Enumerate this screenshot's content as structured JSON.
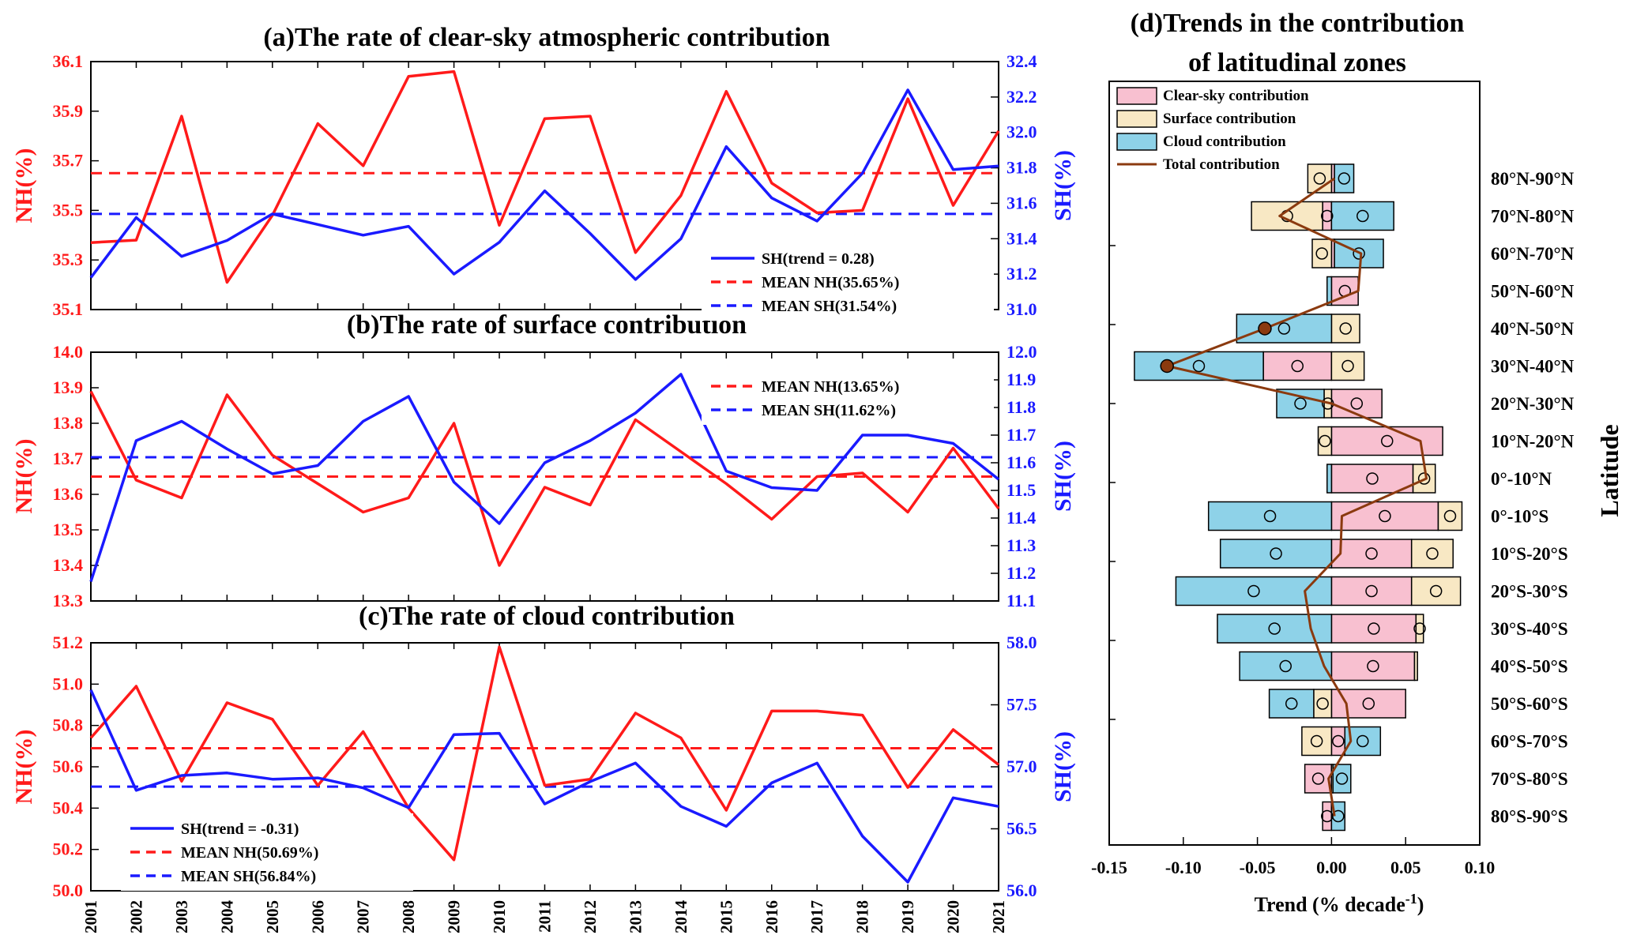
{
  "chart_data": [
    {
      "id": "a",
      "type": "line",
      "title": "(a)The rate of clear-sky atmospheric contribution",
      "x": [
        2001,
        2002,
        2003,
        2004,
        2005,
        2006,
        2007,
        2008,
        2009,
        2010,
        2011,
        2012,
        2013,
        2014,
        2015,
        2016,
        2017,
        2018,
        2019,
        2020,
        2021
      ],
      "ylabel_left": "NH(%)",
      "ylabel_right": "SH(%)",
      "ylim_left": [
        35.1,
        36.1
      ],
      "ylim_right": [
        31.0,
        32.4
      ],
      "yticks_left": [
        "35.1",
        "35.3",
        "35.5",
        "35.7",
        "35.9",
        "36.1"
      ],
      "yticks_right": [
        "31.0",
        "31.2",
        "31.4",
        "31.6",
        "31.8",
        "32.0",
        "32.2",
        "32.4"
      ],
      "series": [
        {
          "name": "NH",
          "axis": "left",
          "color": "#ff1a1a",
          "values": [
            35.37,
            35.38,
            35.88,
            35.21,
            35.48,
            35.85,
            35.68,
            36.04,
            36.06,
            35.44,
            35.87,
            35.88,
            35.33,
            35.56,
            35.98,
            35.61,
            35.49,
            35.5,
            35.95,
            35.52,
            35.82
          ]
        },
        {
          "name": "SH(trend = 0.28)",
          "axis": "right",
          "color": "#1a1aff",
          "values": [
            31.18,
            31.52,
            31.3,
            31.39,
            31.54,
            31.48,
            31.42,
            31.47,
            31.2,
            31.38,
            31.67,
            31.43,
            31.17,
            31.4,
            31.92,
            31.63,
            31.5,
            31.77,
            32.24,
            31.79,
            31.81
          ]
        }
      ],
      "means": [
        {
          "name": "MEAN NH(35.65%)",
          "axis": "left",
          "value": 35.65,
          "color": "#ff1a1a"
        },
        {
          "name": "MEAN SH(31.54%)",
          "axis": "right",
          "value": 31.54,
          "color": "#1a1aff"
        }
      ],
      "legend": [
        "SH(trend = 0.28)",
        "MEAN NH(35.65%)",
        "MEAN SH(31.54%)"
      ],
      "legend_position": "bottom-right"
    },
    {
      "id": "b",
      "type": "line",
      "title": "(b)The rate of surface contribution",
      "x": [
        2001,
        2002,
        2003,
        2004,
        2005,
        2006,
        2007,
        2008,
        2009,
        2010,
        2011,
        2012,
        2013,
        2014,
        2015,
        2016,
        2017,
        2018,
        2019,
        2020,
        2021
      ],
      "ylabel_left": "NH(%)",
      "ylabel_right": "SH(%)",
      "ylim_left": [
        13.3,
        14.0
      ],
      "ylim_right": [
        11.1,
        12.0
      ],
      "yticks_left": [
        "13.3",
        "13.4",
        "13.5",
        "13.6",
        "13.7",
        "13.8",
        "13.9",
        "14.0"
      ],
      "yticks_right": [
        "11.1",
        "11.2",
        "11.3",
        "11.4",
        "11.5",
        "11.6",
        "11.7",
        "11.8",
        "11.9",
        "12.0"
      ],
      "series": [
        {
          "name": "NH",
          "axis": "left",
          "color": "#ff1a1a",
          "values": [
            13.89,
            13.64,
            13.59,
            13.88,
            13.71,
            13.63,
            13.55,
            13.59,
            13.8,
            13.4,
            13.62,
            13.57,
            13.81,
            13.72,
            13.63,
            13.53,
            13.65,
            13.66,
            13.55,
            13.73,
            13.56
          ]
        },
        {
          "name": "SH",
          "axis": "right",
          "color": "#1a1aff",
          "values": [
            11.17,
            11.68,
            11.75,
            11.65,
            11.56,
            11.59,
            11.75,
            11.84,
            11.53,
            11.38,
            11.6,
            11.68,
            11.78,
            11.92,
            11.57,
            11.51,
            11.5,
            11.7,
            11.7,
            11.67,
            11.54
          ]
        }
      ],
      "means": [
        {
          "name": "MEAN NH(13.65%)",
          "axis": "left",
          "value": 13.65,
          "color": "#ff1a1a"
        },
        {
          "name": "MEAN SH(11.62%)",
          "axis": "right",
          "value": 11.62,
          "color": "#1a1aff"
        }
      ],
      "legend": [
        "MEAN NH(13.65%)",
        "MEAN SH(11.62%)"
      ],
      "legend_position": "top-right"
    },
    {
      "id": "c",
      "type": "line",
      "title": "(c)The rate of cloud contribution",
      "x": [
        2001,
        2002,
        2003,
        2004,
        2005,
        2006,
        2007,
        2008,
        2009,
        2010,
        2011,
        2012,
        2013,
        2014,
        2015,
        2016,
        2017,
        2018,
        2019,
        2020,
        2021
      ],
      "ylabel_left": "NH(%)",
      "ylabel_right": "SH(%)",
      "ylim_left": [
        50.0,
        51.2
      ],
      "ylim_right": [
        56.0,
        58.0
      ],
      "yticks_left": [
        "50.0",
        "50.2",
        "50.4",
        "50.6",
        "50.8",
        "51.0",
        "51.2"
      ],
      "yticks_right": [
        "56.0",
        "56.5",
        "57.0",
        "57.5",
        "58.0"
      ],
      "series": [
        {
          "name": "NH",
          "axis": "left",
          "color": "#ff1a1a",
          "values": [
            50.74,
            50.99,
            50.53,
            50.91,
            50.83,
            50.51,
            50.77,
            50.4,
            50.15,
            51.18,
            50.51,
            50.54,
            50.86,
            50.74,
            50.39,
            50.87,
            50.87,
            50.85,
            50.5,
            50.78,
            50.61
          ]
        },
        {
          "name": "SH(trend = -0.31)",
          "axis": "right",
          "color": "#1a1aff",
          "values": [
            57.62,
            56.81,
            56.93,
            56.95,
            56.9,
            56.91,
            56.83,
            56.67,
            57.26,
            57.27,
            56.7,
            56.88,
            57.03,
            56.68,
            56.52,
            56.87,
            57.03,
            56.44,
            56.07,
            56.75,
            56.68
          ]
        }
      ],
      "means": [
        {
          "name": "MEAN NH(50.69%)",
          "axis": "left",
          "value": 50.69,
          "color": "#ff1a1a"
        },
        {
          "name": "MEAN SH(56.84%)",
          "axis": "right",
          "value": 56.84,
          "color": "#1a1aff"
        }
      ],
      "legend": [
        "SH(trend = -0.31)",
        "MEAN NH(50.69%)",
        "MEAN SH(56.84%)"
      ],
      "legend_position": "bottom-left"
    },
    {
      "id": "d",
      "type": "bar",
      "orientation": "horizontal",
      "stacked": true,
      "title": "(d)Trends in the contribution of latitudinal zones",
      "title_lines": [
        "(d)Trends in the contribution",
        "of latitudinal zones"
      ],
      "xlabel": "Trend (% decade",
      "xlabel_sup": "-1",
      "xlabel_end": ")",
      "ylabel": "Latitude",
      "xlim": [
        -0.15,
        0.1
      ],
      "xticks": [
        "-0.15",
        "-0.10",
        "-0.05",
        "0.00",
        "0.05",
        "0.10"
      ],
      "categories": [
        "80°N-90°N",
        "70°N-80°N",
        "60°N-70°N",
        "50°N-60°N",
        "40°N-50°N",
        "30°N-40°N",
        "20°N-30°N",
        "10°N-20°N",
        "0°-10°N",
        "0°-10°S",
        "10°S-20°S",
        "20°S-30°S",
        "30°S-40°S",
        "40°S-50°S",
        "50°S-60°S",
        "60°S-70°S",
        "70°S-80°S",
        "80°S-90°S"
      ],
      "series": [
        {
          "name": "Clear-sky contribution",
          "color": "#f8c0d0",
          "values": [
            0.002,
            -0.006,
            0.002,
            0.018,
            0.0,
            -0.046,
            0.034,
            0.075,
            0.055,
            0.072,
            0.054,
            0.054,
            0.057,
            0.056,
            0.05,
            0.009,
            -0.018,
            -0.006
          ]
        },
        {
          "name": "Surface contribution",
          "color": "#f8e8c4",
          "values": [
            -0.016,
            -0.048,
            -0.013,
            0.0,
            0.019,
            0.022,
            -0.005,
            -0.009,
            0.015,
            0.016,
            0.028,
            0.033,
            0.005,
            0.002,
            -0.012,
            -0.02,
            0.001,
            0.0
          ]
        },
        {
          "name": "Cloud contribution",
          "color": "#8ed2e8",
          "values": [
            0.013,
            0.042,
            0.033,
            -0.003,
            -0.064,
            -0.087,
            -0.032,
            0.0,
            -0.003,
            -0.083,
            -0.075,
            -0.105,
            -0.077,
            -0.062,
            -0.03,
            0.024,
            0.012,
            0.009
          ]
        }
      ],
      "total": {
        "name": "Total contribution",
        "color": "#8b3a0f",
        "values": [
          0.002,
          -0.035,
          0.02,
          0.018,
          -0.045,
          -0.111,
          0.0,
          0.06,
          0.064,
          0.007,
          0.006,
          -0.018,
          -0.014,
          -0.005,
          0.01,
          0.013,
          -0.002,
          0.002
        ]
      },
      "highlighted_total_points": [
        "40°N-50°N",
        "30°N-40°N"
      ]
    }
  ]
}
